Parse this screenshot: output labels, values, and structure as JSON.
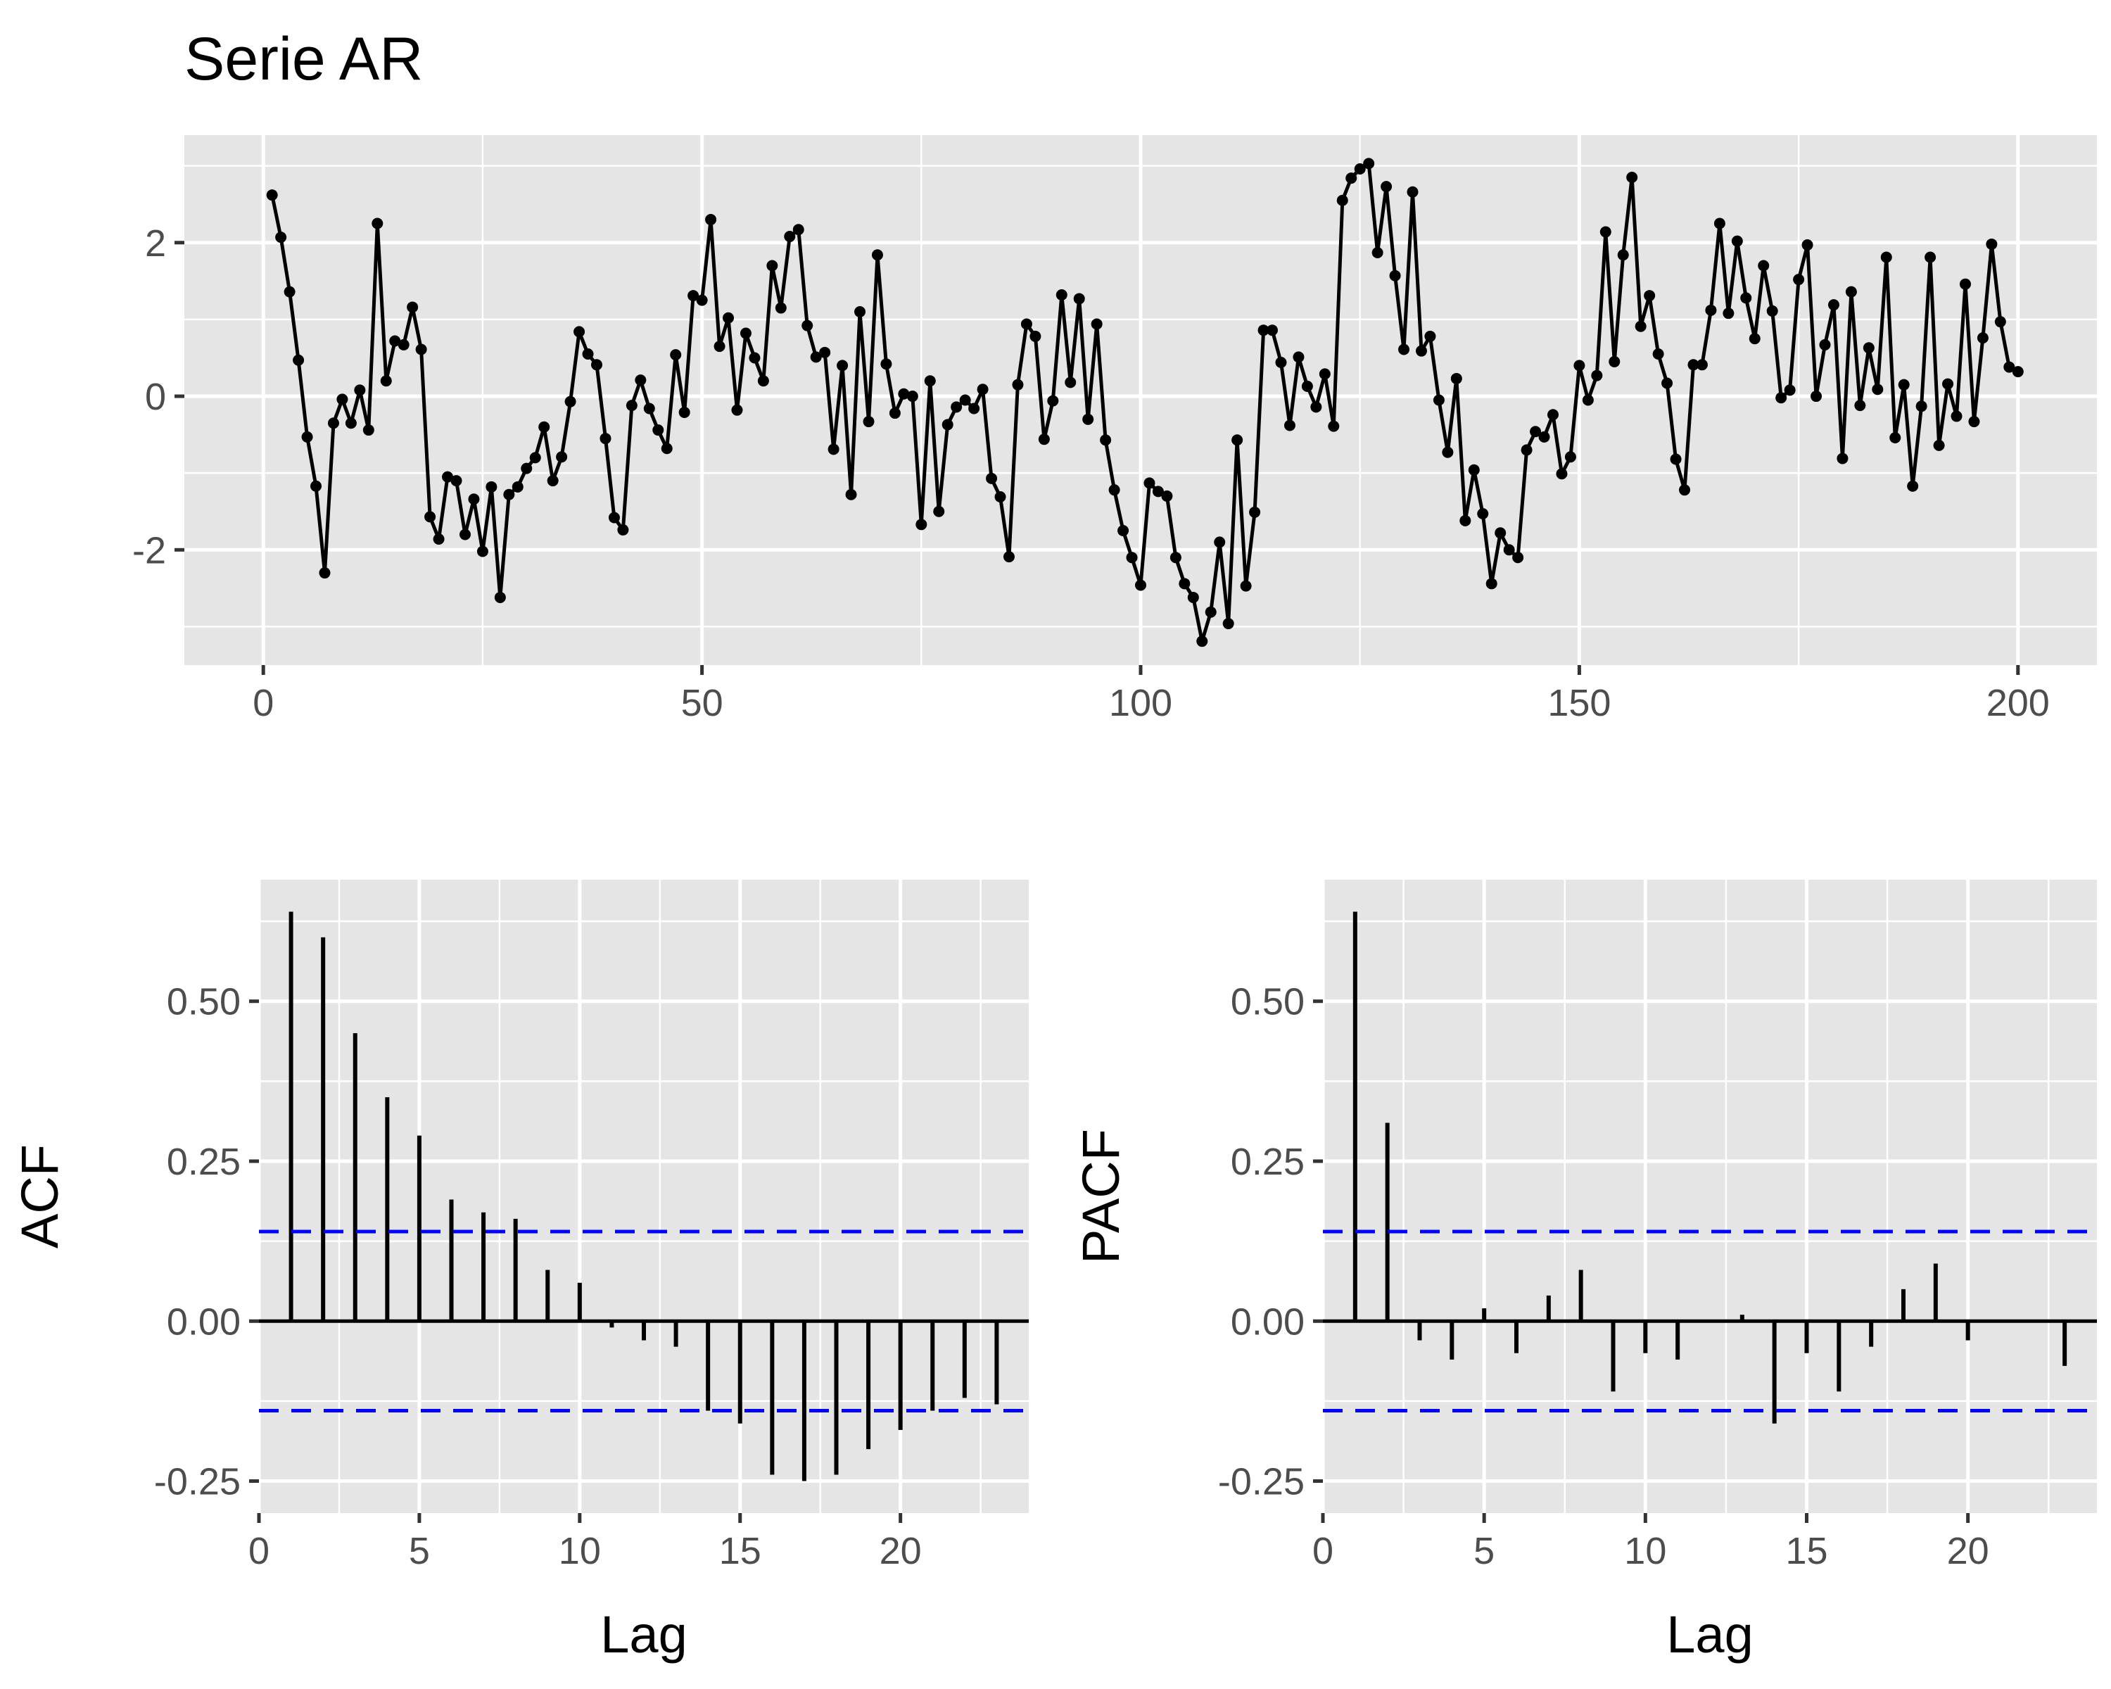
{
  "figure": {
    "title": "Serie AR"
  },
  "chart_data": [
    {
      "type": "line",
      "title": "Serie AR",
      "xlabel": "",
      "ylabel": "",
      "xlim": [
        -9,
        209
      ],
      "ylim": [
        -3.5,
        3.4
      ],
      "x_breaks": [
        0,
        50,
        100,
        150,
        200
      ],
      "x_tick_labels": [
        "0",
        "50",
        "100",
        "150",
        "200"
      ],
      "x_minor_breaks": [
        25,
        75,
        125,
        175
      ],
      "y_breaks": [
        -2,
        0,
        2
      ],
      "y_tick_labels": [
        "-2",
        "0",
        "2"
      ],
      "y_minor_breaks": [
        -3,
        -1,
        1,
        3
      ],
      "grid": true,
      "points_shown": true,
      "colors": {
        "line": "#000000",
        "panel": "#e5e5e5",
        "grid": "#ffffff"
      },
      "x": [
        1,
        2,
        3,
        4,
        5,
        6,
        7,
        8,
        9,
        10,
        11,
        12,
        13,
        14,
        15,
        16,
        17,
        18,
        19,
        20,
        21,
        22,
        23,
        24,
        25,
        26,
        27,
        28,
        29,
        30,
        31,
        32,
        33,
        34,
        35,
        36,
        37,
        38,
        39,
        40,
        41,
        42,
        43,
        44,
        45,
        46,
        47,
        48,
        49,
        50,
        51,
        52,
        53,
        54,
        55,
        56,
        57,
        58,
        59,
        60,
        61,
        62,
        63,
        64,
        65,
        66,
        67,
        68,
        69,
        70,
        71,
        72,
        73,
        74,
        75,
        76,
        77,
        78,
        79,
        80,
        81,
        82,
        83,
        84,
        85,
        86,
        87,
        88,
        89,
        90,
        91,
        92,
        93,
        94,
        95,
        96,
        97,
        98,
        99,
        100,
        101,
        102,
        103,
        104,
        105,
        106,
        107,
        108,
        109,
        110,
        111,
        112,
        113,
        114,
        115,
        116,
        117,
        118,
        119,
        120,
        121,
        122,
        123,
        124,
        125,
        126,
        127,
        128,
        129,
        130,
        131,
        132,
        133,
        134,
        135,
        136,
        137,
        138,
        139,
        140,
        141,
        142,
        143,
        144,
        145,
        146,
        147,
        148,
        149,
        150,
        151,
        152,
        153,
        154,
        155,
        156,
        157,
        158,
        159,
        160,
        161,
        162,
        163,
        164,
        165,
        166,
        167,
        168,
        169,
        170,
        171,
        172,
        173,
        174,
        175,
        176,
        177,
        178,
        179,
        180,
        181,
        182,
        183,
        184,
        185,
        186,
        187,
        188,
        189,
        190,
        191,
        192,
        193,
        194,
        195,
        196,
        197,
        198,
        199,
        200
      ],
      "values": [
        2.62,
        2.07,
        1.36,
        0.47,
        -0.53,
        -1.17,
        -2.3,
        -0.35,
        -0.04,
        -0.35,
        0.08,
        -0.44,
        2.25,
        0.2,
        0.72,
        0.67,
        1.16,
        0.61,
        -1.57,
        -1.86,
        -1.05,
        -1.1,
        -1.8,
        -1.34,
        -2.02,
        -1.18,
        -2.62,
        -1.28,
        -1.18,
        -0.94,
        -0.8,
        -0.4,
        -1.1,
        -0.79,
        -0.07,
        0.84,
        0.55,
        0.41,
        -0.55,
        -1.58,
        -1.74,
        -0.12,
        0.21,
        -0.16,
        -0.44,
        -0.68,
        0.54,
        -0.21,
        1.31,
        1.25,
        2.3,
        0.65,
        1.02,
        -0.18,
        0.82,
        0.5,
        0.2,
        1.7,
        1.15,
        2.08,
        2.17,
        0.92,
        0.51,
        0.57,
        -0.69,
        0.4,
        -1.28,
        1.1,
        -0.33,
        1.84,
        0.42,
        -0.22,
        0.03,
        0.0,
        -1.67,
        0.2,
        -1.5,
        -0.37,
        -0.14,
        -0.05,
        -0.16,
        0.09,
        -1.07,
        -1.31,
        -2.09,
        0.15,
        0.94,
        0.78,
        -0.56,
        -0.06,
        1.32,
        0.18,
        1.27,
        -0.3,
        0.94,
        -0.57,
        -1.22,
        -1.75,
        -2.1,
        -2.46,
        -1.13,
        -1.24,
        -1.3,
        -2.1,
        -2.44,
        -2.62,
        -3.19,
        -2.81,
        -1.9,
        -2.96,
        -0.57,
        -2.47,
        -1.51,
        0.86,
        0.86,
        0.44,
        -0.38,
        0.51,
        0.13,
        -0.14,
        0.29,
        -0.39,
        2.55,
        2.84,
        2.96,
        3.03,
        1.87,
        2.73,
        1.57,
        0.61,
        2.66,
        0.59,
        0.78,
        -0.05,
        -0.73,
        0.23,
        -1.62,
        -0.96,
        -1.53,
        -2.44,
        -1.78,
        -2.0,
        -2.1,
        -0.7,
        -0.46,
        -0.53,
        -0.24,
        -1.01,
        -0.79,
        0.4,
        -0.05,
        0.27,
        2.14,
        0.45,
        1.84,
        2.85,
        0.91,
        1.31,
        0.55,
        0.17,
        -0.82,
        -1.22,
        0.41,
        0.41,
        1.12,
        2.25,
        1.08,
        2.02,
        1.28,
        0.75,
        1.7,
        1.11,
        -0.02,
        0.08,
        1.52,
        1.97,
        0.0,
        0.67,
        1.19,
        -0.81,
        1.36,
        -0.12,
        0.63,
        0.09,
        1.81,
        -0.54,
        0.15,
        -1.17,
        -0.13,
        1.81,
        -0.64,
        0.16,
        -0.26,
        1.46,
        -0.33,
        0.76,
        1.98,
        0.97,
        0.38,
        0.32
      ]
    },
    {
      "type": "bar",
      "title": "",
      "xlabel": "Lag",
      "ylabel": "ACF",
      "xlim": [
        0,
        24
      ],
      "ylim": [
        -0.3,
        0.69
      ],
      "x_breaks": [
        0,
        5,
        10,
        15,
        20
      ],
      "x_tick_labels": [
        "0",
        "5",
        "10",
        "15",
        "20"
      ],
      "x_minor_breaks": [
        2.5,
        7.5,
        12.5,
        17.5,
        22.5
      ],
      "y_breaks": [
        -0.25,
        0,
        0.25,
        0.5
      ],
      "y_tick_labels": [
        "-0.25",
        "0.00",
        "0.25",
        "0.50"
      ],
      "y_minor_breaks": [
        -0.125,
        0.125,
        0.375,
        0.625
      ],
      "grid": true,
      "confidence_bound": 0.14,
      "colors": {
        "bars": "#000000",
        "bound": "#0000ff",
        "panel": "#e5e5e5",
        "grid": "#ffffff"
      },
      "categories": [
        1,
        2,
        3,
        4,
        5,
        6,
        7,
        8,
        9,
        10,
        11,
        12,
        13,
        14,
        15,
        16,
        17,
        18,
        19,
        20,
        21,
        22,
        23
      ],
      "values": [
        0.64,
        0.6,
        0.45,
        0.35,
        0.29,
        0.19,
        0.17,
        0.16,
        0.08,
        0.06,
        -0.01,
        -0.03,
        -0.04,
        -0.14,
        -0.16,
        -0.24,
        -0.25,
        -0.24,
        -0.2,
        -0.17,
        -0.14,
        -0.12,
        -0.13
      ]
    },
    {
      "type": "bar",
      "title": "",
      "xlabel": "Lag",
      "ylabel": "PACF",
      "xlim": [
        0,
        24
      ],
      "ylim": [
        -0.3,
        0.69
      ],
      "x_breaks": [
        0,
        5,
        10,
        15,
        20
      ],
      "x_tick_labels": [
        "0",
        "5",
        "10",
        "15",
        "20"
      ],
      "x_minor_breaks": [
        2.5,
        7.5,
        12.5,
        17.5,
        22.5
      ],
      "y_breaks": [
        -0.25,
        0,
        0.25,
        0.5
      ],
      "y_tick_labels": [
        "-0.25",
        "0.00",
        "0.25",
        "0.50"
      ],
      "y_minor_breaks": [
        -0.125,
        0.125,
        0.375,
        0.625
      ],
      "grid": true,
      "confidence_bound": 0.14,
      "colors": {
        "bars": "#000000",
        "bound": "#0000ff",
        "panel": "#e5e5e5",
        "grid": "#ffffff"
      },
      "categories": [
        1,
        2,
        3,
        4,
        5,
        6,
        7,
        8,
        9,
        10,
        11,
        12,
        13,
        14,
        15,
        16,
        17,
        18,
        19,
        20,
        21,
        22,
        23
      ],
      "values": [
        0.64,
        0.31,
        -0.03,
        -0.06,
        0.02,
        -0.05,
        0.04,
        0.08,
        -0.11,
        -0.05,
        -0.06,
        0.0,
        0.01,
        -0.16,
        -0.05,
        -0.11,
        -0.04,
        0.05,
        0.09,
        -0.03,
        0.0,
        0.0,
        -0.07
      ]
    }
  ]
}
